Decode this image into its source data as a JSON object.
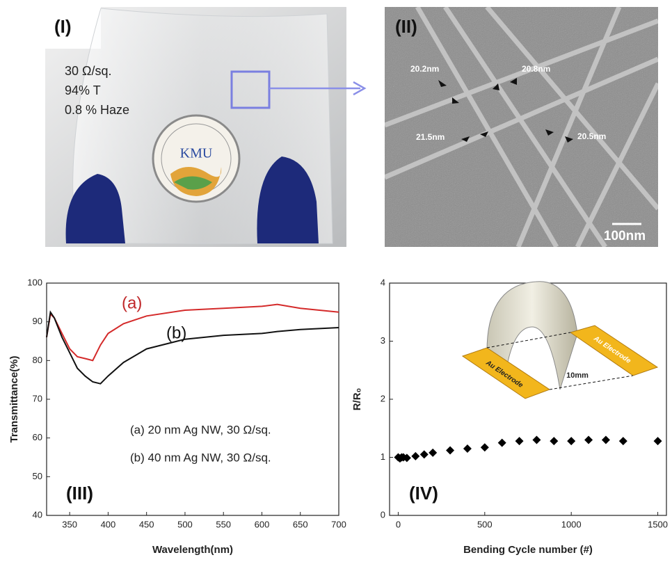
{
  "photo": {
    "label": "(I)",
    "specs": [
      "30 Ω/sq.",
      "94% T",
      "0.8 % Haze"
    ],
    "logo": "KMU"
  },
  "sem": {
    "label": "(II)",
    "diameters": [
      "20.2nm",
      "20.8nm",
      "21.5nm",
      "20.5nm"
    ],
    "scale_bar": "100nm"
  },
  "chart_data": [
    {
      "type": "line",
      "panel": "(III)",
      "x_label": "Wavelength(nm)",
      "y_label": "Transmittance(%)",
      "x": [
        320,
        325,
        330,
        340,
        350,
        360,
        370,
        380,
        390,
        400,
        420,
        450,
        500,
        550,
        600,
        620,
        650,
        700
      ],
      "series": [
        {
          "name": "(a) 20 nm Ag NW,  30 Ω/sq.",
          "color": "#d42a2a",
          "values": [
            86,
            92,
            91,
            87,
            83,
            81,
            80.5,
            80,
            84,
            87,
            89.5,
            91.5,
            93,
            93.5,
            94,
            94.5,
            93.5,
            92.5
          ]
        },
        {
          "name": "(b) 40 nm Ag NW,  30 Ω/sq.",
          "color": "#111111",
          "values": [
            86,
            92.5,
            91,
            86,
            82,
            78,
            76,
            74.5,
            74,
            76,
            79.5,
            83,
            85.5,
            86.5,
            87,
            87.5,
            88,
            88.5
          ]
        }
      ],
      "annotations": [
        {
          "text": "(a)",
          "color": "#c0282a"
        },
        {
          "text": "(b)",
          "color": "#111111"
        }
      ],
      "xlim": [
        320,
        700
      ],
      "xticks": [
        350,
        400,
        450,
        500,
        550,
        600,
        650,
        700
      ],
      "ylim": [
        40,
        100
      ],
      "yticks": [
        40,
        50,
        60,
        70,
        80,
        90,
        100
      ]
    },
    {
      "type": "scatter",
      "panel": "(IV)",
      "x_label": "Bending Cycle number (#)",
      "y_label": "R/R₀",
      "x": [
        0,
        10,
        20,
        30,
        50,
        100,
        150,
        200,
        300,
        400,
        500,
        600,
        700,
        800,
        900,
        1000,
        1100,
        1200,
        1300,
        1500
      ],
      "series": [
        {
          "color": "#000000",
          "values": [
            1.0,
            0.98,
            1.0,
            1.0,
            0.99,
            1.02,
            1.05,
            1.08,
            1.12,
            1.15,
            1.17,
            1.25,
            1.28,
            1.3,
            1.28,
            1.28,
            1.3,
            1.3,
            1.28,
            1.28
          ]
        }
      ],
      "inset": [
        "Au Electrode",
        "Au Electrode",
        "10mm"
      ],
      "xlim": [
        -50,
        1550
      ],
      "xticks": [
        0,
        500,
        1000,
        1500
      ],
      "ylim": [
        0,
        4
      ],
      "yticks": [
        0,
        1,
        2,
        3,
        4
      ]
    }
  ]
}
